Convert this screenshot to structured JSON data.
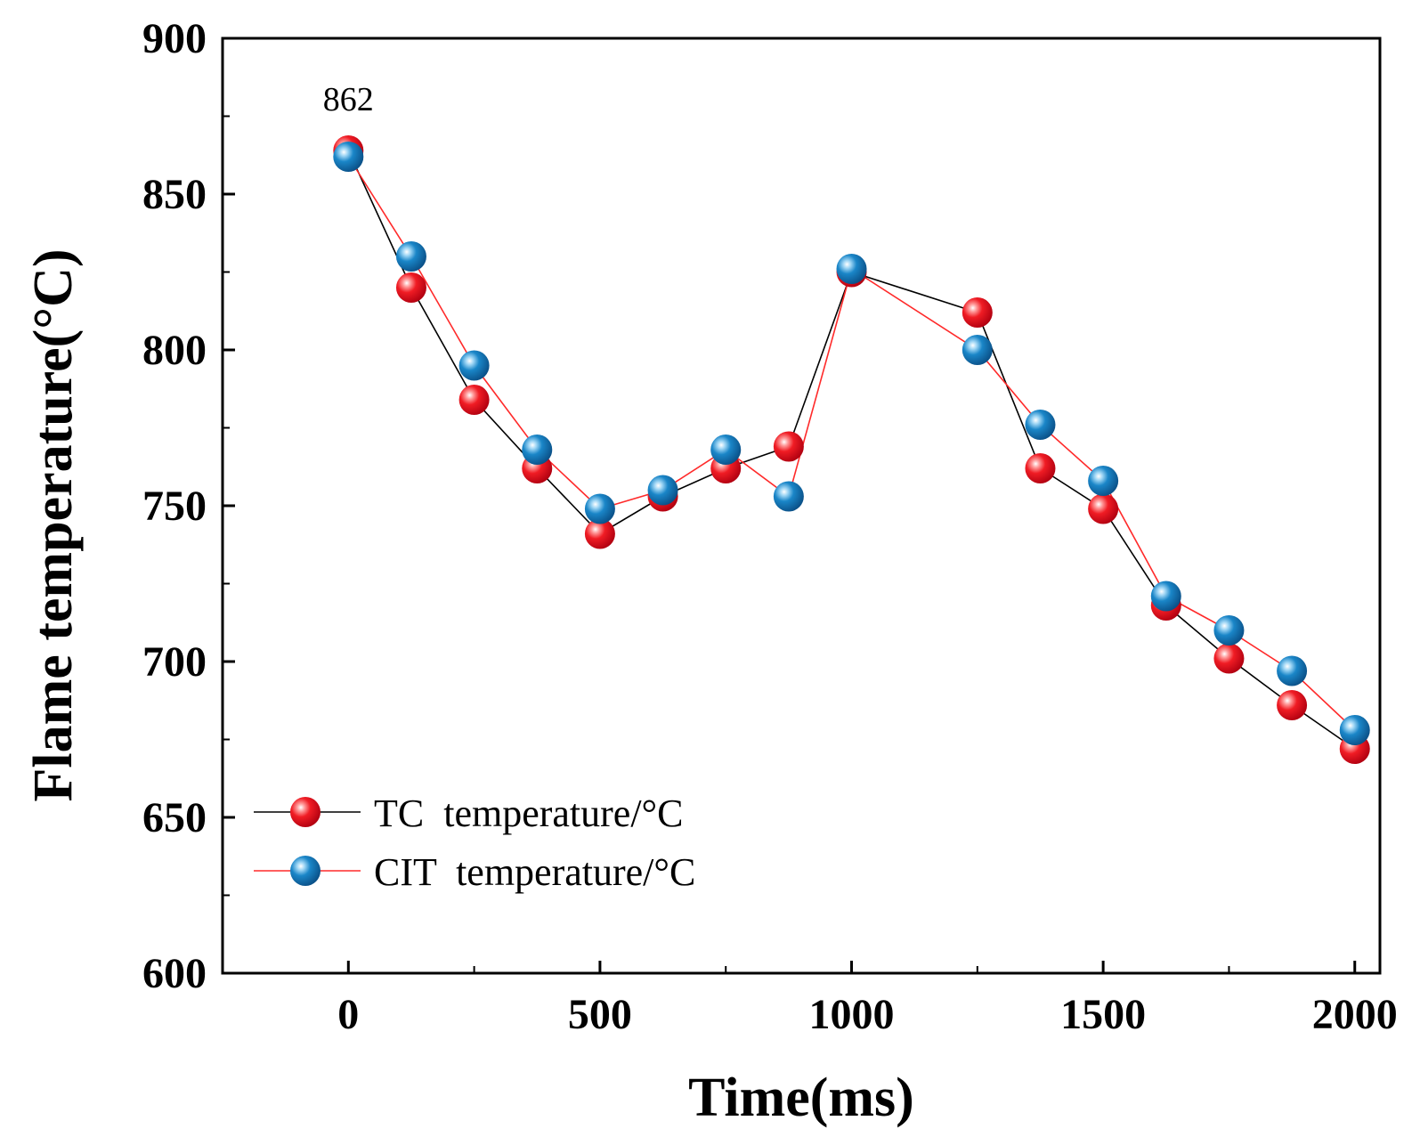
{
  "chart_data": {
    "type": "line",
    "title": "",
    "xlabel": "Time(ms)",
    "ylabel": "Flame temperature(°C)",
    "xlim": [
      -250,
      2050
    ],
    "ylim": [
      600,
      900
    ],
    "xticks": [
      0,
      500,
      1000,
      1500,
      2000
    ],
    "yticks": [
      600,
      650,
      700,
      750,
      800,
      850,
      900
    ],
    "xtick_labels": [
      "0",
      "500",
      "1000",
      "1500",
      "2000"
    ],
    "ytick_labels": [
      "600",
      "650",
      "700",
      "750",
      "800",
      "850",
      "900"
    ],
    "grid": false,
    "legend_position": "bottom-left",
    "series": [
      {
        "name": "TC  temperature/°C",
        "line_color": "#000000",
        "marker_color": "#e8101e",
        "x": [
          0,
          125,
          250,
          375,
          500,
          625,
          750,
          875,
          1000,
          1250,
          1375,
          1500,
          1625,
          1750,
          1875,
          2000
        ],
        "values": [
          864,
          820,
          784,
          762,
          741,
          753,
          762,
          769,
          825,
          812,
          762,
          749,
          718,
          701,
          686,
          672
        ]
      },
      {
        "name": "CIT  temperature/°C",
        "line_color": "#ff2a2a",
        "marker_color": "#1a78b8",
        "x": [
          0,
          125,
          250,
          375,
          500,
          625,
          750,
          875,
          1000,
          1250,
          1375,
          1500,
          1625,
          1750,
          1875,
          2000
        ],
        "values": [
          862,
          830,
          795,
          768,
          749,
          755,
          768,
          753,
          826,
          800,
          776,
          758,
          721,
          710,
          697,
          678
        ]
      }
    ],
    "annotations": [
      {
        "text": "862",
        "x": 0,
        "y": 862
      }
    ]
  }
}
